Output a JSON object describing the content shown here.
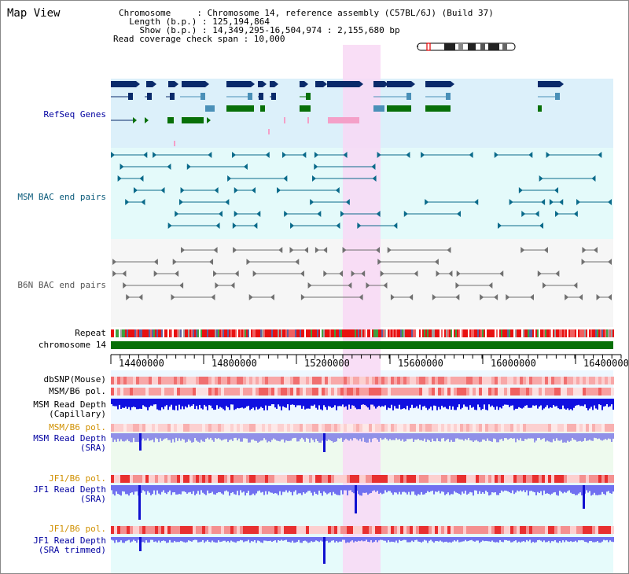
{
  "page_title": "Map View",
  "info": {
    "chromosome": "Chromosome     : Chromosome 14, reference assembly (C57BL/6J) (Build 37)",
    "length": "  Length (b.p.) : 125,194,864",
    "show": "    Show (b.p.) : 14,349,295-16,504,974 : 2,155,680 bp",
    "span": "Read coverage check span : 10,000"
  },
  "tracks": {
    "refseq": "RefSeq Genes",
    "msm_bac": "MSM BAC end pairs",
    "b6n_bac": "B6N BAC end pairs",
    "repeat": "Repeat",
    "chrom": "chromosome 14",
    "dbsnp": "dbSNP(Mouse)",
    "msm_b6_pol1": "MSM/B6 pol.",
    "msm_depth_cap": "MSM Read Depth\n(Capillary)",
    "msm_b6_pol2": "MSM/B6 pol.",
    "msm_depth_sra": "MSM Read Depth\n(SRA)",
    "jf1_b6_pol1": "JF1/B6 pol.",
    "jf1_depth_sra": "JF1 Read Depth\n(SRA)",
    "jf1_b6_pol2": "JF1/B6 pol.",
    "jf1_depth_trim": "JF1 Read Depth\n(SRA trimmed)"
  },
  "axis": {
    "ticks": [
      "14400000",
      "14800000",
      "15200000",
      "15600000",
      "16000000",
      "16400000"
    ]
  },
  "colors": {
    "refseq_bg": "#dcf0fa",
    "msm_bg": "#e4fafa",
    "b6n_bg": "#f6f6f6",
    "highlight": "#f8d8f4",
    "navy": "#0a2a6a",
    "steel": "#4a90b8",
    "green": "#087008",
    "teal": "#0a6a8a",
    "gray": "#707070",
    "depth_blue": "#1010e0",
    "depth_light": "#8080f0",
    "label_blue": "#0000a0",
    "label_orange": "#d09000"
  }
}
